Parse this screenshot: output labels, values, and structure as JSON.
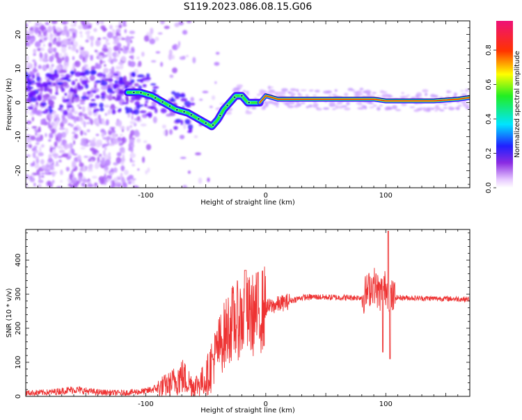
{
  "figure": {
    "title": "S119.2023.086.08.15.G06"
  },
  "chart_data": [
    {
      "type": "heatmap",
      "xlabel": "Height of straight line (km)",
      "ylabel": "Frequency (Hz)",
      "xlim": [
        -200,
        170
      ],
      "ylim": [
        -25,
        24
      ],
      "xticks": [
        -100,
        0,
        100
      ],
      "yticks": [
        -20,
        -10,
        0,
        10,
        20
      ],
      "ridge": {
        "x": [
          -115,
          -105,
          -95,
          -85,
          -75,
          -65,
          -55,
          -45,
          -40,
          -35,
          -30,
          -25,
          -20,
          -15,
          -10,
          -5,
          0,
          10,
          20,
          40,
          60,
          80,
          90,
          100,
          120,
          140,
          160,
          170
        ],
        "y": [
          3,
          3,
          2,
          0,
          -2,
          -3,
          -5,
          -7,
          -5,
          -2,
          0,
          2,
          2,
          0,
          0,
          0,
          2,
          1,
          1,
          1,
          1,
          1,
          1,
          0.5,
          0.5,
          0.5,
          1,
          1.5
        ]
      },
      "colorbar": {
        "label": "Normalized spectral amplitude",
        "range": [
          0,
          0.97
        ],
        "ticks": [
          0.0,
          0.2,
          0.4,
          0.6,
          0.8
        ]
      }
    },
    {
      "type": "line",
      "xlabel": "Height of straight line (km)",
      "ylabel": "SNR (10 * v/v)",
      "xlim": [
        -200,
        170
      ],
      "ylim": [
        0,
        490
      ],
      "xticks": [
        -100,
        0,
        100
      ],
      "yticks": [
        0,
        100,
        200,
        300,
        400
      ],
      "color": "#ee3333",
      "series": [
        {
          "x": [
            -200,
            -180,
            -160,
            -140,
            -120,
            -100,
            -90,
            -80,
            -70,
            -60,
            -50,
            -40,
            -30,
            -20,
            -10,
            0,
            10,
            20,
            30,
            40,
            60,
            80,
            85,
            90,
            95,
            100,
            105,
            110,
            130,
            150,
            170
          ],
          "y": [
            10,
            12,
            20,
            12,
            10,
            15,
            25,
            35,
            60,
            30,
            50,
            140,
            210,
            230,
            240,
            260,
            270,
            280,
            290,
            292,
            290,
            290,
            310,
            330,
            300,
            320,
            290,
            290,
            288,
            287,
            285
          ]
        }
      ]
    }
  ]
}
